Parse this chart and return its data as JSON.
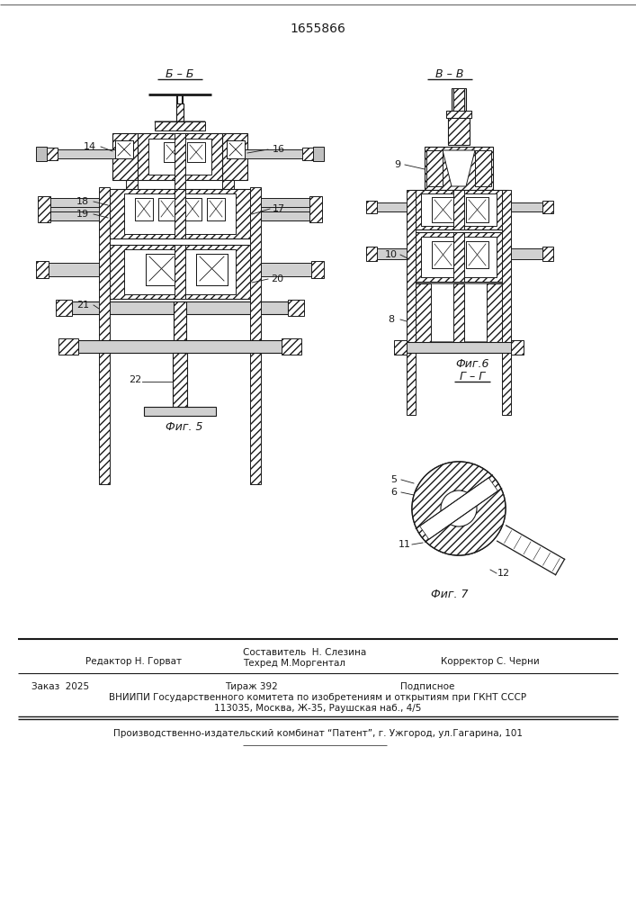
{
  "patent_number": "1655866",
  "background_color": "#ffffff",
  "line_color": "#1a1a1a",
  "fig_width": 7.07,
  "fig_height": 10.0,
  "footer_line1_editor": "Редактор Н. Горват",
  "footer_line1_comp": "Составитель  Н. Слезина",
  "footer_line1_corr": "Корректор С. Черни",
  "footer_line2_tech": "Техред М.Моргентал",
  "footer_order": "Заказ  2025",
  "footer_tirazh": "Тираж 392",
  "footer_podpisnoe": "Подписное",
  "footer_vniiipi": "ВНИИПИ Государственного комитета по изобретениям и открытиям при ГКНТ СССР",
  "footer_address": "113035, Москва, Ж-35, Раушская наб., 4/5",
  "footer_patent": "Производственно-издательский комбинат “Патент”, г. Ужгород, ул.Гагарина, 101"
}
